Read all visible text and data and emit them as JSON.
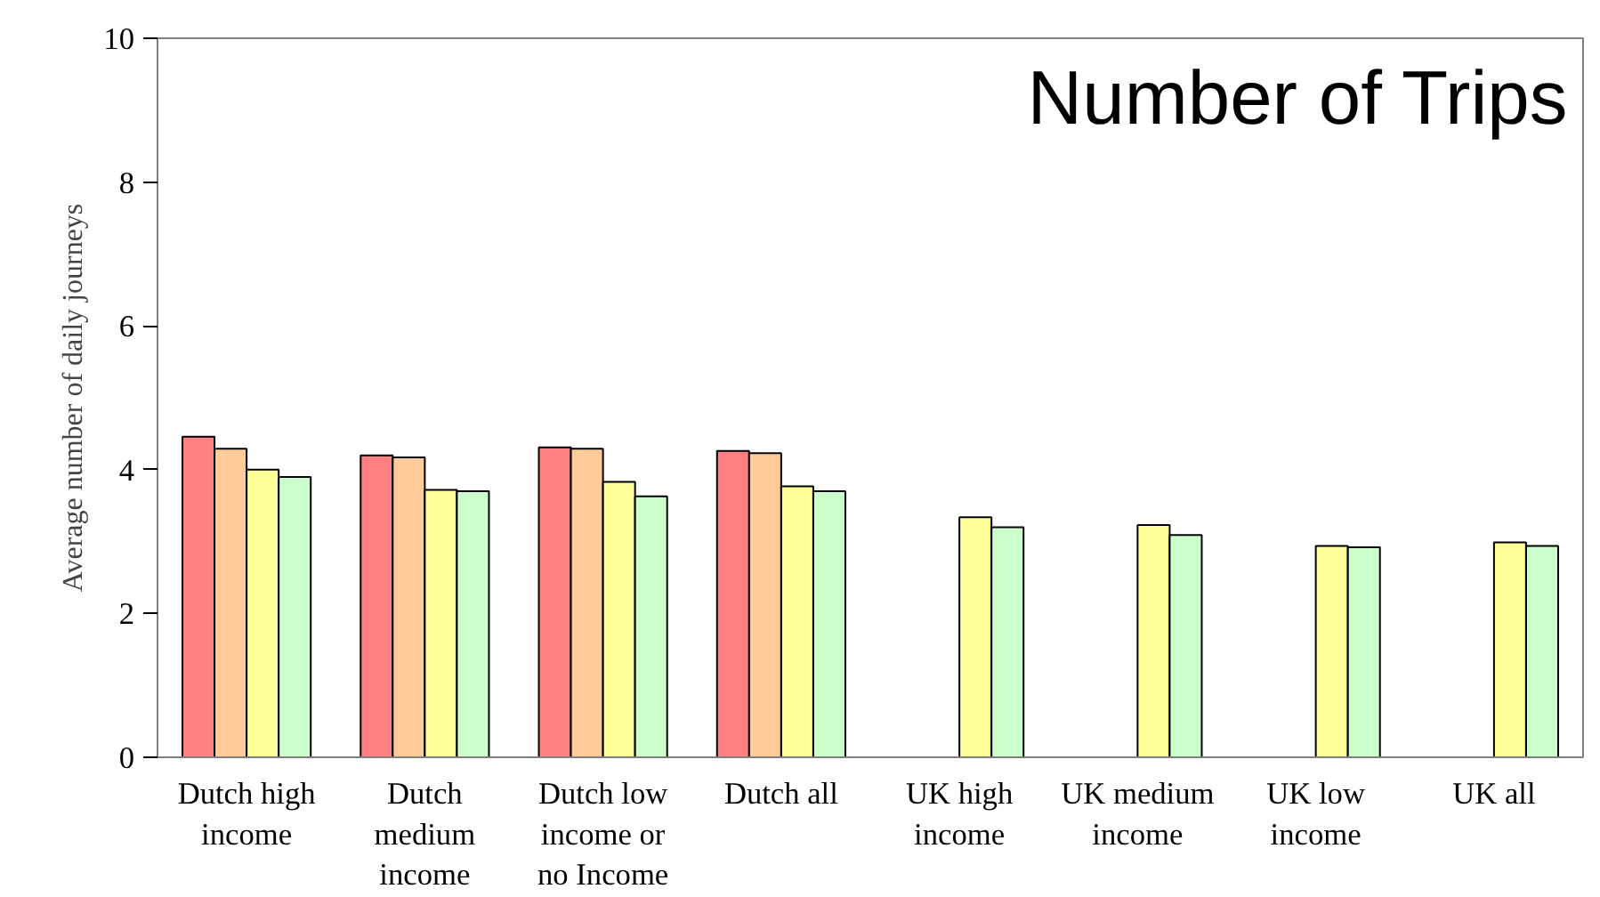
{
  "chart_data": {
    "type": "bar",
    "title": "Number of Trips",
    "ylabel": "Average number of daily journeys",
    "categories": [
      "Dutch high income",
      "Dutch medium income",
      "Dutch low income or no Income",
      "Dutch all",
      "UK high income",
      "UK medium income",
      "UK low income",
      "UK all"
    ],
    "series": [
      {
        "color": "#ff8080",
        "values": [
          4.46,
          4.2,
          4.31,
          4.26,
          null,
          null,
          null,
          null
        ]
      },
      {
        "color": "#ffcc99",
        "values": [
          4.29,
          4.17,
          4.29,
          4.23,
          null,
          null,
          null,
          null
        ]
      },
      {
        "color": "#ffff99",
        "values": [
          4.0,
          3.72,
          3.83,
          3.77,
          3.34,
          3.23,
          2.94,
          2.99
        ]
      },
      {
        "color": "#ccffcc",
        "values": [
          3.9,
          3.7,
          3.63,
          3.7,
          3.2,
          3.09,
          2.92,
          2.94
        ]
      }
    ],
    "ylim": [
      0,
      10
    ],
    "yticks": [
      0,
      2,
      4,
      6,
      8,
      10
    ],
    "grid": false
  }
}
